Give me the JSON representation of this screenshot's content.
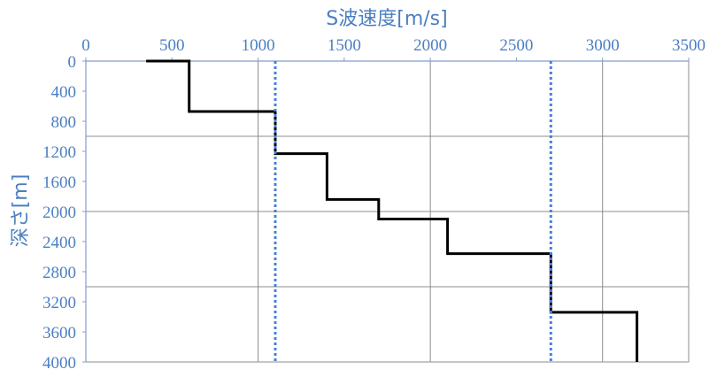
{
  "chart_data": {
    "type": "line",
    "xlabel": "S波速度[m/s]",
    "ylabel": "深さ[m]",
    "x_axis_position": "top",
    "y_axis_inverted": true,
    "xlim": [
      0,
      3500
    ],
    "ylim": [
      0,
      4000
    ],
    "x_ticks": [
      0,
      500,
      1000,
      1500,
      2000,
      2500,
      3000,
      3500
    ],
    "x_tick_labels": [
      "0",
      "500",
      "1000",
      "1500",
      "2000",
      "2500",
      "3000",
      "3500"
    ],
    "y_ticks": [
      0,
      400,
      800,
      1200,
      1600,
      2000,
      2400,
      2800,
      3200,
      3600,
      4000
    ],
    "y_tick_labels": [
      "0",
      "400",
      "800",
      "1200",
      "1600",
      "2000",
      "2400",
      "2800",
      "3200",
      "3600",
      "4000"
    ],
    "grid": {
      "x_gridlines": [
        1000,
        2000,
        3000,
        3500
      ],
      "y_gridlines": [
        1000,
        2000,
        3000,
        4000
      ]
    },
    "series": [
      {
        "style": "solid",
        "color": "#000000",
        "points": [
          [
            350,
            0
          ],
          [
            600,
            0
          ],
          [
            600,
            670
          ],
          [
            1100,
            670
          ],
          [
            1100,
            1230
          ],
          [
            1400,
            1230
          ],
          [
            1400,
            1840
          ],
          [
            1700,
            1840
          ],
          [
            1700,
            2100
          ],
          [
            2100,
            2100
          ],
          [
            2100,
            2560
          ],
          [
            2700,
            2560
          ],
          [
            2700,
            3340
          ],
          [
            3200,
            3340
          ],
          [
            3200,
            4000
          ]
        ]
      },
      {
        "style": "dotted",
        "color": "#4a7fd8",
        "points": [
          [
            1100,
            0
          ],
          [
            1100,
            4000
          ]
        ]
      },
      {
        "style": "dotted",
        "color": "#4a7fd8",
        "points": [
          [
            2700,
            0
          ],
          [
            2700,
            4000
          ]
        ]
      }
    ],
    "colors": {
      "axis": "#4a7fc1",
      "grid": "#8c8c8c",
      "frame": "#7f9fcf"
    }
  }
}
